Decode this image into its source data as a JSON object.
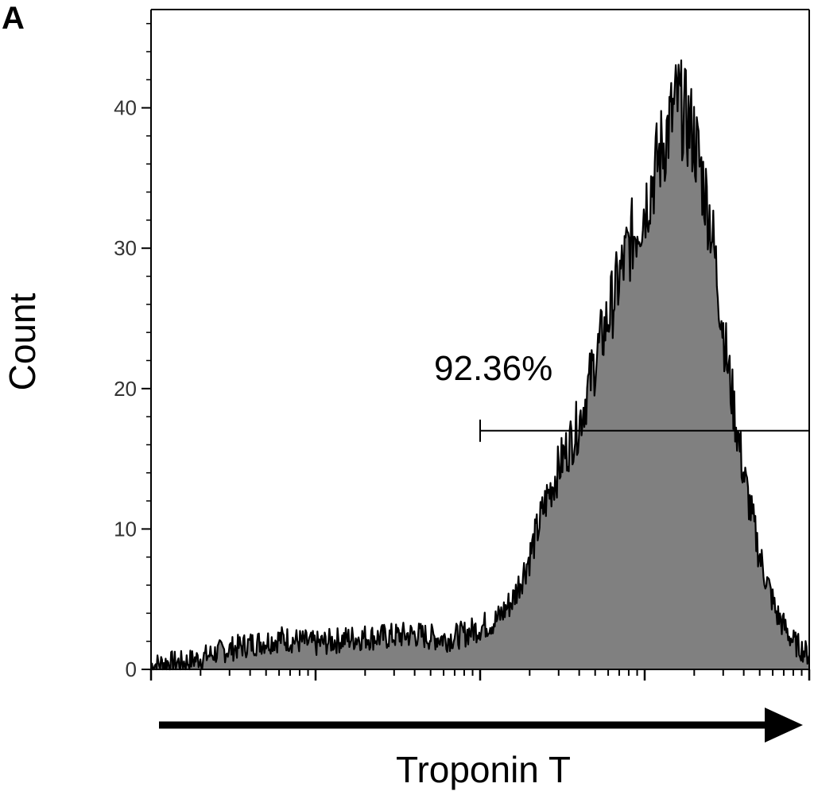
{
  "panel_label": "A",
  "chart_data": {
    "type": "area",
    "title": "",
    "xlabel": "Troponin T",
    "ylabel": "Count",
    "ylim": [
      0,
      47
    ],
    "yticks": [
      0,
      10,
      20,
      30,
      40
    ],
    "x_scale": "log",
    "x_decades": 4,
    "xlim": [
      0,
      4
    ],
    "x": [
      0.0,
      0.1,
      0.2,
      0.3,
      0.4,
      0.5,
      0.6,
      0.7,
      0.8,
      0.9,
      1.0,
      1.1,
      1.2,
      1.3,
      1.4,
      1.5,
      1.6,
      1.7,
      1.8,
      1.9,
      2.0,
      2.1,
      2.2,
      2.3,
      2.4,
      2.5,
      2.6,
      2.7,
      2.8,
      2.9,
      3.0,
      3.1,
      3.2,
      3.3,
      3.4,
      3.5,
      3.6,
      3.7,
      3.8,
      3.9,
      4.0
    ],
    "y": [
      0.3,
      0.5,
      0.5,
      0.8,
      1.2,
      1.5,
      1.8,
      2.0,
      2.2,
      2.0,
      1.8,
      2.0,
      2.2,
      2.3,
      2.3,
      2.4,
      2.5,
      2.3,
      2.2,
      2.5,
      3.0,
      3.5,
      5.0,
      8.0,
      12.0,
      15.0,
      17.5,
      22.0,
      26.0,
      30.0,
      33.0,
      37.0,
      40.5,
      38.0,
      32.0,
      22.0,
      14.0,
      8.0,
      4.0,
      2.0,
      1.0
    ],
    "gate": {
      "label": "92.36%",
      "x_start": 2.0,
      "x_end": 4.0,
      "y": 17
    },
    "colors": {
      "fill": "#808080",
      "line": "#000000",
      "axis": "#000000"
    }
  }
}
